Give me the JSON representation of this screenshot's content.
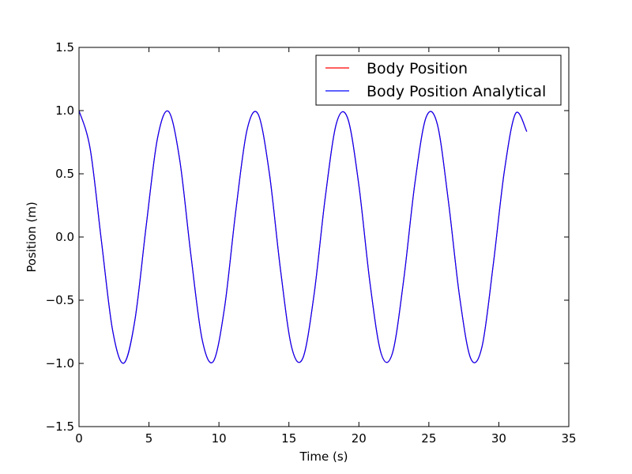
{
  "chart_data": {
    "type": "line",
    "title": "",
    "xlabel": "Time (s)",
    "ylabel": "Position (m)",
    "xlim": [
      0,
      35
    ],
    "ylim": [
      -1.5,
      1.5
    ],
    "x_ticks": [
      0,
      5,
      10,
      15,
      20,
      25,
      30,
      35
    ],
    "y_ticks": [
      -1.5,
      -1.0,
      -0.5,
      0.0,
      0.5,
      1.0,
      1.5
    ],
    "x_tick_labels": [
      "0",
      "5",
      "10",
      "15",
      "20",
      "25",
      "30",
      "35"
    ],
    "y_tick_labels": [
      "−1.5",
      "−1.0",
      "−0.5",
      "0.0",
      "0.5",
      "1.0",
      "1.5"
    ],
    "grid": false,
    "legend_placement": "top-right",
    "x": [
      0.0,
      0.8,
      1.6,
      2.4,
      3.2,
      4.0,
      4.8,
      5.6,
      6.4,
      7.2,
      8.0,
      8.8,
      9.6,
      10.4,
      11.2,
      12.0,
      12.8,
      13.6,
      14.4,
      15.2,
      16.0,
      16.8,
      17.6,
      18.4,
      19.2,
      20.0,
      20.8,
      21.6,
      22.4,
      23.2,
      24.0,
      24.8,
      25.6,
      26.4,
      27.2,
      28.0,
      28.8,
      29.6,
      30.4,
      31.2,
      32.0
    ],
    "series": [
      {
        "name": "Body Position",
        "color": "#ff0000",
        "values": [
          1.0,
          0.697,
          -0.029,
          -0.737,
          -0.998,
          -0.654,
          0.087,
          0.776,
          0.993,
          0.608,
          -0.146,
          -0.811,
          -0.984,
          -0.559,
          0.203,
          0.844,
          0.972,
          0.507,
          -0.26,
          -0.874,
          -0.957,
          -0.453,
          0.316,
          0.901,
          0.939,
          0.408,
          -0.37,
          -0.925,
          -0.918,
          -0.34,
          0.424,
          0.946,
          0.894,
          0.28,
          -0.475,
          -0.963,
          -0.867,
          -0.22,
          0.525,
          0.978,
          0.834
        ]
      },
      {
        "name": "Body Position Analytical",
        "color": "#0000ff",
        "values": [
          1.0,
          0.697,
          -0.029,
          -0.737,
          -0.998,
          -0.654,
          0.087,
          0.776,
          0.993,
          0.608,
          -0.146,
          -0.811,
          -0.984,
          -0.559,
          0.203,
          0.844,
          0.972,
          0.507,
          -0.26,
          -0.874,
          -0.957,
          -0.453,
          0.316,
          0.901,
          0.939,
          0.408,
          -0.37,
          -0.925,
          -0.918,
          -0.34,
          0.424,
          0.946,
          0.894,
          0.28,
          -0.475,
          -0.963,
          -0.867,
          -0.22,
          0.525,
          0.978,
          0.834
        ]
      }
    ]
  }
}
